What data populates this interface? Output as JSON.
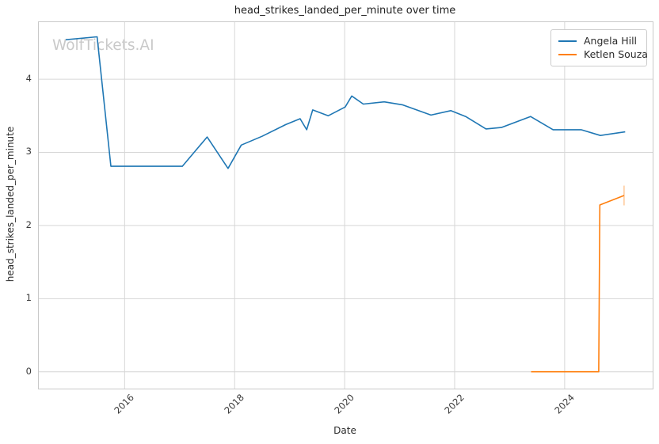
{
  "watermark": "WolfTickets.AI",
  "colors": {
    "series_blue": "#1f77b4",
    "series_orange": "#ff7f0e",
    "grid": "#d6d6d6",
    "spine": "#c9c9c9",
    "tick_text": "#3a3a3a",
    "title_text": "#1f1f1f",
    "watermark_text": "#c9c9c9"
  },
  "chart_data": {
    "type": "line",
    "title": "head_strikes_landed_per_minute over time",
    "xlabel": "Date",
    "ylabel": "head_strikes_landed_per_minute",
    "xlim": [
      2014.44,
      2025.6
    ],
    "ylim": [
      -0.23,
      4.78
    ],
    "xticks": [
      2016,
      2018,
      2020,
      2022,
      2024
    ],
    "yticks": [
      0,
      1,
      2,
      3,
      4
    ],
    "grid": true,
    "legend": {
      "position": "top-right",
      "entries": [
        {
          "label": "Angela Hill",
          "color": "#1f77b4"
        },
        {
          "label": "Ketlen Souza",
          "color": "#ff7f0e"
        }
      ]
    },
    "series": [
      {
        "name": "Angela Hill",
        "color": "#1f77b4",
        "x": [
          2014.93,
          2015.5,
          2015.75,
          2017.05,
          2017.5,
          2017.88,
          2018.12,
          2018.5,
          2018.93,
          2019.19,
          2019.31,
          2019.42,
          2019.7,
          2020.01,
          2020.13,
          2020.34,
          2020.72,
          2021.05,
          2021.57,
          2021.93,
          2022.2,
          2022.57,
          2022.85,
          2023.38,
          2023.79,
          2024.3,
          2024.65,
          2025.1
        ],
        "y": [
          4.54,
          4.58,
          2.81,
          2.81,
          3.21,
          2.78,
          3.1,
          3.22,
          3.38,
          3.46,
          3.31,
          3.58,
          3.5,
          3.62,
          3.77,
          3.66,
          3.69,
          3.65,
          3.51,
          3.57,
          3.49,
          3.32,
          3.34,
          3.49,
          3.31,
          3.31,
          3.23,
          3.28
        ]
      },
      {
        "name": "Ketlen Souza",
        "color": "#ff7f0e",
        "x": [
          2023.39,
          2024.62,
          2024.64,
          2025.08
        ],
        "y": [
          0.0,
          0.0,
          2.28,
          2.41
        ],
        "end_marker": {
          "x": 2025.08,
          "y": 2.41,
          "half_height": 0.135
        }
      }
    ]
  }
}
